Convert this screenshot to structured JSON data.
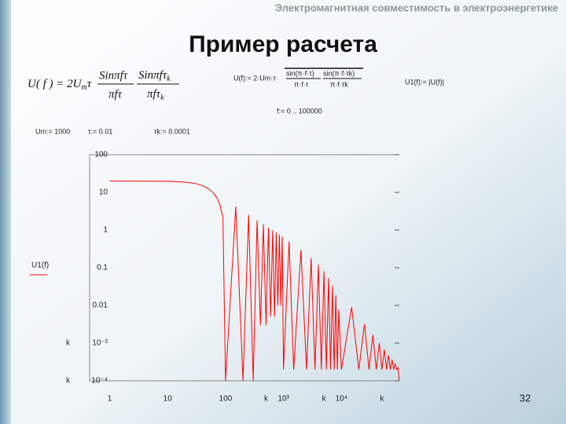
{
  "header": "Электромагнитная совместимость в электроэнергетике",
  "title": "Пример расчета",
  "page_number": "32",
  "formula": {
    "lhs": "U( f ) = 2U",
    "lhs_sub": "m",
    "lhs_tail": "τ",
    "num1": "Sinπfτ",
    "den1": "πfτ",
    "num2": "Sinπfτ",
    "num2_sub": "k",
    "den2": "πfτ",
    "den2_sub": "k"
  },
  "mathcad": {
    "def": "U(f):= 2·Um·τ·",
    "num1": "sin(π·f·τ)",
    "den1": "π·f·τ",
    "num2": "sin(π·f·τk)",
    "den2": "π·f·τk",
    "abs_def": "U1(f):= |U(f)|",
    "range": "f:= 0 .. 100000",
    "params": [
      "Um:= 1000",
      "τ:= 0.01",
      "τk:= 0.0001"
    ]
  },
  "chart_data": {
    "type": "line",
    "log_x": true,
    "log_y": true,
    "xlim": [
      0.45,
      100000
    ],
    "ylim": [
      0.0001,
      100
    ],
    "xticks": [
      1,
      10,
      100,
      {
        "value": 500,
        "label": "k"
      },
      {
        "value": 1000,
        "label": "10³"
      },
      {
        "value": 5000,
        "label": "k"
      },
      {
        "value": 10000,
        "label": "10⁴"
      },
      {
        "value": 50000,
        "label": "k"
      }
    ],
    "yticks": [
      100,
      10,
      1,
      0.1,
      0.01,
      {
        "value": 0.001,
        "label": "10⁻³"
      },
      {
        "value": 0.0001,
        "label": "10⁻⁴"
      }
    ],
    "y_side_labels": [
      {
        "value": 0.001,
        "label": "k"
      },
      {
        "value": 0.0001,
        "label": "k"
      }
    ],
    "x": [
      1,
      10,
      20,
      30,
      40,
      50,
      60,
      70,
      80,
      90,
      100,
      150,
      200,
      250,
      300,
      350,
      400,
      450,
      500,
      550,
      600,
      650,
      700,
      750,
      800,
      850,
      900,
      950,
      1000,
      1250,
      1500,
      2000,
      2500,
      3000,
      3500,
      4000,
      4500,
      5000,
      5500,
      6000,
      6500,
      7000,
      7500,
      8000,
      8500,
      9000,
      10000,
      15000,
      20000,
      25000,
      30000,
      35000,
      40000,
      45000,
      50000,
      55000,
      60000,
      65000,
      70000,
      75000,
      80000,
      85000,
      90000,
      95000,
      100000
    ],
    "series": [
      {
        "name": "U1(f)",
        "color": "#ff0000",
        "values": [
          20,
          19.67,
          18.7,
          17.2,
          15.1,
          12.7,
          10.1,
          7.36,
          4.68,
          2.19,
          0.0001,
          4.24,
          0.0001,
          2.55,
          0.0001,
          1.82,
          0.003,
          1.41,
          0.003,
          1.16,
          0.005,
          0.98,
          0.005,
          0.85,
          0.01,
          0.75,
          0.01,
          0.67,
          0.0002,
          0.496,
          0.0002,
          0.298,
          0.0002,
          0.182,
          0.0002,
          0.12,
          0.0002,
          0.081,
          0.0002,
          0.0535,
          0.0002,
          0.0335,
          0.0002,
          0.0186,
          0.0002,
          0.0077,
          0.0002,
          0.009,
          0.0002,
          0.0032,
          0.0002,
          0.00165,
          0.0002,
          0.001,
          0.0002,
          0.00067,
          0.0002,
          0.00048,
          0.0002,
          0.00036,
          0.0002,
          0.00028,
          0.0002,
          0.000224,
          0.0001
        ]
      }
    ]
  }
}
